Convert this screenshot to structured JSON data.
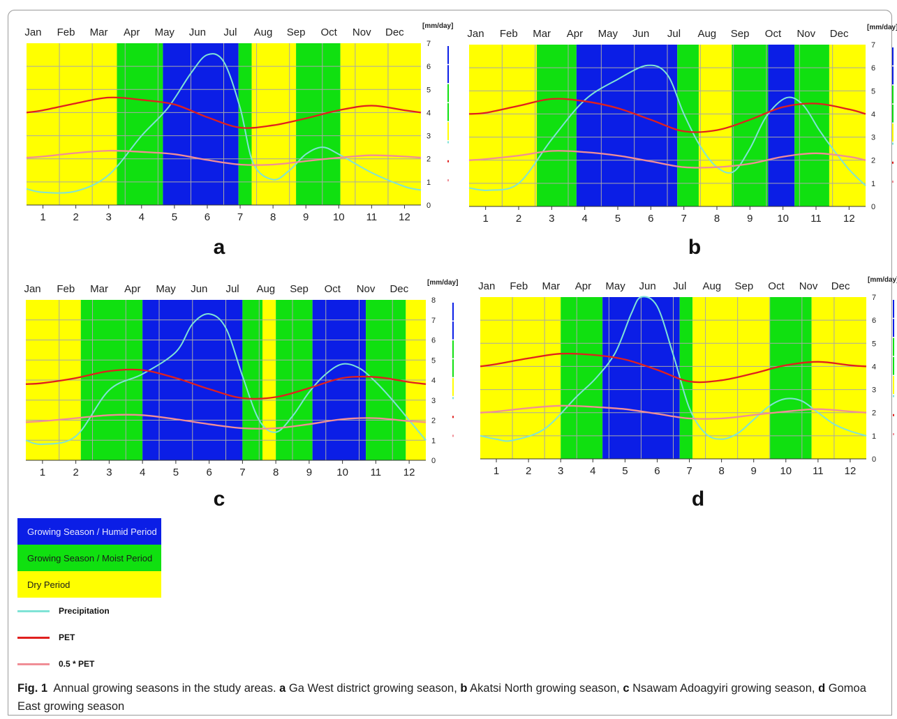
{
  "colors": {
    "humid": "#0b1ee6",
    "moist": "#10e010",
    "dry": "#ffff00",
    "precipitation": "#7fe3d6",
    "pet": "#e0201e",
    "half_pet": "#f08e96",
    "grid": "#a8a8a8"
  },
  "months": [
    "Jan",
    "Feb",
    "Mar",
    "Apr",
    "May",
    "Jun",
    "Jul",
    "Aug",
    "Sep",
    "Oct",
    "Nov",
    "Dec"
  ],
  "unit_label": "[mm/day]",
  "chart_data": [
    {
      "panel": "a",
      "type": "area",
      "xlabels": [
        "1",
        "2",
        "3",
        "4",
        "5",
        "6",
        "7",
        "8",
        "9",
        "10",
        "11",
        "12"
      ],
      "ylim": [
        0,
        7
      ],
      "yticks": [
        "0",
        "1",
        "2",
        "3",
        "4",
        "5",
        "6",
        "7"
      ],
      "periods": [
        {
          "from": 0,
          "to": 2.75,
          "type": "dry"
        },
        {
          "from": 2.75,
          "to": 4.15,
          "type": "moist"
        },
        {
          "from": 4.15,
          "to": 6.45,
          "type": "humid"
        },
        {
          "from": 6.45,
          "to": 6.85,
          "type": "moist"
        },
        {
          "from": 6.85,
          "to": 8.2,
          "type": "dry"
        },
        {
          "from": 8.2,
          "to": 9.55,
          "type": "moist"
        },
        {
          "from": 9.55,
          "to": 12,
          "type": "dry"
        }
      ],
      "series": [
        {
          "name": "Precipitation",
          "x": [
            0,
            0.5,
            1.5,
            2.5,
            3.5,
            4.3,
            5,
            5.5,
            6,
            6.5,
            6.9,
            7.5,
            8,
            8.5,
            9,
            9.5,
            10.5,
            11.5,
            12
          ],
          "values": [
            0.7,
            0.55,
            0.6,
            1.3,
            3.0,
            4.2,
            5.7,
            6.5,
            6.2,
            4.2,
            1.8,
            1.1,
            1.5,
            2.2,
            2.5,
            2.2,
            1.4,
            0.8,
            0.65
          ]
        },
        {
          "name": "PET",
          "x": [
            0,
            0.5,
            1.5,
            2.5,
            3.5,
            4.5,
            5.5,
            6.5,
            7.5,
            8.5,
            9.5,
            10.5,
            11.5,
            12
          ],
          "values": [
            4.0,
            4.1,
            4.4,
            4.65,
            4.55,
            4.35,
            3.8,
            3.35,
            3.45,
            3.75,
            4.1,
            4.3,
            4.1,
            4.0
          ]
        },
        {
          "name": "0.5 * PET",
          "x": [
            0,
            0.5,
            1.5,
            2.5,
            3.5,
            4.5,
            5.5,
            6.5,
            7.5,
            8.5,
            9.5,
            10.5,
            11.5,
            12
          ],
          "values": [
            2.05,
            2.1,
            2.25,
            2.35,
            2.3,
            2.2,
            1.95,
            1.75,
            1.75,
            1.9,
            2.05,
            2.15,
            2.1,
            2.05
          ]
        }
      ]
    },
    {
      "panel": "b",
      "type": "area",
      "xlabels": [
        "1",
        "2",
        "3",
        "4",
        "5",
        "6",
        "7",
        "8",
        "9",
        "10",
        "11",
        "12"
      ],
      "ylim": [
        0,
        7
      ],
      "yticks": [
        "0",
        "1",
        "2",
        "3",
        "4",
        "5",
        "6",
        "7"
      ],
      "periods": [
        {
          "from": 0,
          "to": 2.05,
          "type": "dry"
        },
        {
          "from": 2.05,
          "to": 3.25,
          "type": "moist"
        },
        {
          "from": 3.25,
          "to": 6.3,
          "type": "humid"
        },
        {
          "from": 6.3,
          "to": 6.95,
          "type": "moist"
        },
        {
          "from": 6.95,
          "to": 7.95,
          "type": "dry"
        },
        {
          "from": 7.95,
          "to": 9.05,
          "type": "moist"
        },
        {
          "from": 9.05,
          "to": 9.85,
          "type": "humid"
        },
        {
          "from": 9.85,
          "to": 10.9,
          "type": "moist"
        },
        {
          "from": 10.9,
          "to": 12,
          "type": "dry"
        }
      ],
      "series": [
        {
          "name": "Precipitation",
          "x": [
            0,
            0.6,
            1.5,
            2.5,
            3.5,
            4.5,
            5.4,
            6,
            6.5,
            7,
            7.5,
            8,
            8.5,
            9,
            9.6,
            10.1,
            10.6,
            11,
            11.5,
            12
          ],
          "values": [
            0.8,
            0.7,
            1.0,
            2.9,
            4.6,
            5.5,
            6.1,
            5.7,
            4.0,
            2.6,
            1.7,
            1.5,
            2.5,
            3.9,
            4.7,
            4.4,
            3.3,
            2.5,
            1.6,
            0.9
          ]
        },
        {
          "name": "PET",
          "x": [
            0,
            0.5,
            1.5,
            2.5,
            3.5,
            4.5,
            5.5,
            6.5,
            7.5,
            8.5,
            9.5,
            10.5,
            11.5,
            12
          ],
          "values": [
            4.0,
            4.05,
            4.35,
            4.65,
            4.55,
            4.25,
            3.75,
            3.25,
            3.3,
            3.75,
            4.3,
            4.45,
            4.2,
            4.0
          ]
        },
        {
          "name": "0.5 * PET",
          "x": [
            0,
            0.5,
            1.5,
            2.5,
            3.5,
            4.5,
            5.5,
            6.5,
            7.5,
            8.5,
            9.5,
            10.5,
            11.5,
            12
          ],
          "values": [
            2.0,
            2.05,
            2.2,
            2.4,
            2.35,
            2.2,
            1.95,
            1.7,
            1.7,
            1.85,
            2.15,
            2.3,
            2.15,
            2.0
          ]
        }
      ]
    },
    {
      "panel": "c",
      "type": "area",
      "xlabels": [
        "1",
        "2",
        "3",
        "4",
        "5",
        "6",
        "7",
        "8",
        "9",
        "10",
        "11",
        "12"
      ],
      "ylim": [
        0,
        8
      ],
      "yticks": [
        "0",
        "1",
        "2",
        "3",
        "4",
        "5",
        "6",
        "7",
        "8"
      ],
      "periods": [
        {
          "from": 0,
          "to": 1.65,
          "type": "dry"
        },
        {
          "from": 1.65,
          "to": 3.5,
          "type": "moist"
        },
        {
          "from": 3.5,
          "to": 6.5,
          "type": "humid"
        },
        {
          "from": 6.5,
          "to": 7.1,
          "type": "moist"
        },
        {
          "from": 7.1,
          "to": 7.5,
          "type": "dry"
        },
        {
          "from": 7.5,
          "to": 8.6,
          "type": "moist"
        },
        {
          "from": 8.6,
          "to": 10.2,
          "type": "humid"
        },
        {
          "from": 10.2,
          "to": 11.4,
          "type": "moist"
        },
        {
          "from": 11.4,
          "to": 12,
          "type": "dry"
        }
      ],
      "series": [
        {
          "name": "Precipitation",
          "x": [
            0,
            0.5,
            1.5,
            2.5,
            3.5,
            4.5,
            5,
            5.5,
            6,
            6.5,
            7,
            7.5,
            8,
            8.5,
            9,
            9.5,
            10,
            10.5,
            11,
            11.5,
            12
          ],
          "values": [
            1.0,
            0.8,
            1.2,
            3.5,
            4.3,
            5.4,
            6.8,
            7.3,
            6.6,
            4.2,
            2.0,
            1.4,
            2.2,
            3.4,
            4.3,
            4.8,
            4.6,
            3.9,
            3.0,
            2.0,
            1.0
          ]
        },
        {
          "name": "PET",
          "x": [
            0,
            0.5,
            1.5,
            2.5,
            3.5,
            4.5,
            5.5,
            6.5,
            7.5,
            8.5,
            9.5,
            10.5,
            11.5,
            12
          ],
          "values": [
            3.8,
            3.85,
            4.1,
            4.45,
            4.5,
            4.1,
            3.55,
            3.1,
            3.15,
            3.6,
            4.1,
            4.15,
            3.9,
            3.8
          ]
        },
        {
          "name": "0.5 * PET",
          "x": [
            0,
            0.5,
            1.5,
            2.5,
            3.5,
            4.5,
            5.5,
            6.5,
            7.5,
            8.5,
            9.5,
            10.5,
            11.5,
            12
          ],
          "values": [
            1.9,
            1.95,
            2.1,
            2.25,
            2.25,
            2.05,
            1.8,
            1.6,
            1.6,
            1.8,
            2.05,
            2.1,
            1.95,
            1.9
          ]
        }
      ]
    },
    {
      "panel": "d",
      "type": "area",
      "xlabels": [
        "1",
        "2",
        "3",
        "4",
        "5",
        "6",
        "7",
        "8",
        "9",
        "10",
        "11",
        "12"
      ],
      "ylim": [
        0,
        7
      ],
      "yticks": [
        "0",
        "1",
        "2",
        "3",
        "4",
        "5",
        "6",
        "7"
      ],
      "periods": [
        {
          "from": 0,
          "to": 2.5,
          "type": "dry"
        },
        {
          "from": 2.5,
          "to": 3.8,
          "type": "moist"
        },
        {
          "from": 3.8,
          "to": 6.2,
          "type": "humid"
        },
        {
          "from": 6.2,
          "to": 6.6,
          "type": "moist"
        },
        {
          "from": 6.6,
          "to": 9.0,
          "type": "dry"
        },
        {
          "from": 9.0,
          "to": 10.3,
          "type": "moist"
        },
        {
          "from": 10.3,
          "to": 12,
          "type": "dry"
        }
      ],
      "series": [
        {
          "name": "Precipitation",
          "x": [
            0,
            0.5,
            1,
            2,
            3,
            3.6,
            4.2,
            4.7,
            5,
            5.5,
            6,
            6.5,
            7,
            7.5,
            8,
            8.5,
            9,
            9.5,
            10,
            10.5,
            11,
            11.5,
            12
          ],
          "values": [
            1.0,
            0.85,
            0.8,
            1.3,
            2.7,
            3.5,
            4.6,
            6.3,
            7.0,
            6.6,
            4.5,
            2.2,
            1.1,
            0.85,
            1.1,
            1.7,
            2.3,
            2.6,
            2.5,
            2.0,
            1.5,
            1.2,
            1.0
          ]
        },
        {
          "name": "PET",
          "x": [
            0,
            0.5,
            1.5,
            2.5,
            3.5,
            4.5,
            5.5,
            6.5,
            7.5,
            8.5,
            9.5,
            10.5,
            11.5,
            12
          ],
          "values": [
            4.0,
            4.1,
            4.35,
            4.55,
            4.5,
            4.3,
            3.85,
            3.35,
            3.4,
            3.7,
            4.05,
            4.2,
            4.05,
            4.0
          ]
        },
        {
          "name": "0.5 * PET",
          "x": [
            0,
            0.5,
            1.5,
            2.5,
            3.5,
            4.5,
            5.5,
            6.5,
            7.5,
            8.5,
            9.5,
            10.5,
            11.5,
            12
          ],
          "values": [
            2.0,
            2.05,
            2.2,
            2.3,
            2.25,
            2.15,
            1.95,
            1.75,
            1.75,
            1.9,
            2.05,
            2.15,
            2.05,
            2.0
          ]
        }
      ]
    }
  ],
  "legend": {
    "humid": "Growing Season / Humid Period",
    "moist": "Growing Season / Moist Period",
    "dry": "Dry Period",
    "precipitation": "Precipitation",
    "pet": "PET",
    "half_pet": "0.5 * PET"
  },
  "caption": {
    "fig": "Fig. 1",
    "intro": "  Annual growing seasons in the study areas. ",
    "parts": [
      {
        "letter": "a",
        "text": " Ga West district growing season, "
      },
      {
        "letter": "b",
        "text": " Akatsi North growing season, "
      },
      {
        "letter": "c",
        "text": " Nsawam Adoagyiri growing season, "
      },
      {
        "letter": "d",
        "text": " Gomoa East growing season"
      }
    ]
  }
}
